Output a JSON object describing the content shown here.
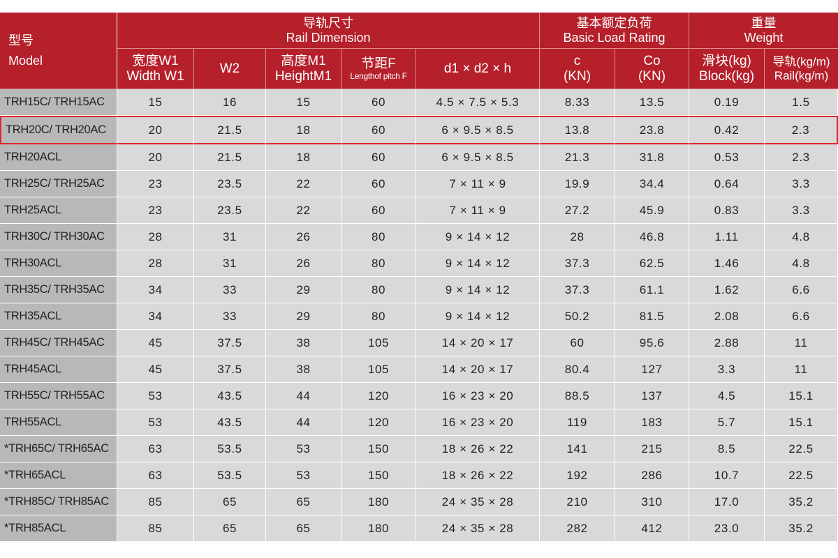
{
  "header": {
    "model_zh": "型号",
    "model_en": "Model",
    "rail_zh": "导轨尺寸",
    "rail_en": "Rail Dimension",
    "load_zh": "基本额定负荷",
    "load_en": "Basic Load Rating",
    "weight_zh": "重量",
    "weight_en": "Weight",
    "w1_zh": "宽度W1",
    "w1_en": "Width W1",
    "w2": "W2",
    "m1_zh": "高度M1",
    "m1_en": "HeightM1",
    "f_zh": "节距F",
    "f_en": "Lengthof pitch F",
    "d": "d1 × d2 × h",
    "c_top": "c",
    "c_unit": "(KN)",
    "co_top": "Co",
    "co_unit": "(KN)",
    "block_zh": "滑块(kg)",
    "block_en": "Block(kg)",
    "rail_w_zh": "导轨(kg/m)",
    "rail_w_en": "Rail(kg/m)"
  },
  "highlight_row": 1,
  "rows": [
    [
      "TRH15C/ TRH15AC",
      "15",
      "16",
      "15",
      "60",
      "4.5 × 7.5 × 5.3",
      "8.33",
      "13.5",
      "0.19",
      "1.5"
    ],
    [
      "TRH20C/ TRH20AC",
      "20",
      "21.5",
      "18",
      "60",
      "6 × 9.5 × 8.5",
      "13.8",
      "23.8",
      "0.42",
      "2.3"
    ],
    [
      "TRH20ACL",
      "20",
      "21.5",
      "18",
      "60",
      "6 × 9.5 × 8.5",
      "21.3",
      "31.8",
      "0.53",
      "2.3"
    ],
    [
      "TRH25C/ TRH25AC",
      "23",
      "23.5",
      "22",
      "60",
      "7 × 11 × 9",
      "19.9",
      "34.4",
      "0.64",
      "3.3"
    ],
    [
      "TRH25ACL",
      "23",
      "23.5",
      "22",
      "60",
      "7 × 11 × 9",
      "27.2",
      "45.9",
      "0.83",
      "3.3"
    ],
    [
      "TRH30C/ TRH30AC",
      "28",
      "31",
      "26",
      "80",
      "9 × 14 × 12",
      "28",
      "46.8",
      "1.11",
      "4.8"
    ],
    [
      "TRH30ACL",
      "28",
      "31",
      "26",
      "80",
      "9 × 14 × 12",
      "37.3",
      "62.5",
      "1.46",
      "4.8"
    ],
    [
      "TRH35C/ TRH35AC",
      "34",
      "33",
      "29",
      "80",
      "9 × 14 × 12",
      "37.3",
      "61.1",
      "1.62",
      "6.6"
    ],
    [
      "TRH35ACL",
      "34",
      "33",
      "29",
      "80",
      "9 × 14 × 12",
      "50.2",
      "81.5",
      "2.08",
      "6.6"
    ],
    [
      "TRH45C/ TRH45AC",
      "45",
      "37.5",
      "38",
      "105",
      "14 × 20 × 17",
      "60",
      "95.6",
      "2.88",
      "11"
    ],
    [
      "TRH45ACL",
      "45",
      "37.5",
      "38",
      "105",
      "14 × 20 × 17",
      "80.4",
      "127",
      "3.3",
      "11"
    ],
    [
      "TRH55C/ TRH55AC",
      "53",
      "43.5",
      "44",
      "120",
      "16 × 23 × 20",
      "88.5",
      "137",
      "4.5",
      "15.1"
    ],
    [
      "TRH55ACL",
      "53",
      "43.5",
      "44",
      "120",
      "16 × 23 × 20",
      "119",
      "183",
      "5.7",
      "15.1"
    ],
    [
      "*TRH65C/ TRH65AC",
      "63",
      "53.5",
      "53",
      "150",
      "18 × 26 × 22",
      "141",
      "215",
      "8.5",
      "22.5"
    ],
    [
      "*TRH65ACL",
      "63",
      "53.5",
      "53",
      "150",
      "18 × 26 × 22",
      "192",
      "286",
      "10.7",
      "22.5"
    ],
    [
      "*TRH85C/ TRH85AC",
      "85",
      "65",
      "65",
      "180",
      "24 × 35 × 28",
      "210",
      "310",
      "17.0",
      "35.2"
    ],
    [
      "*TRH85ACL",
      "85",
      "65",
      "65",
      "180",
      "24 × 35 × 28",
      "282",
      "412",
      "23.0",
      "35.2"
    ]
  ]
}
